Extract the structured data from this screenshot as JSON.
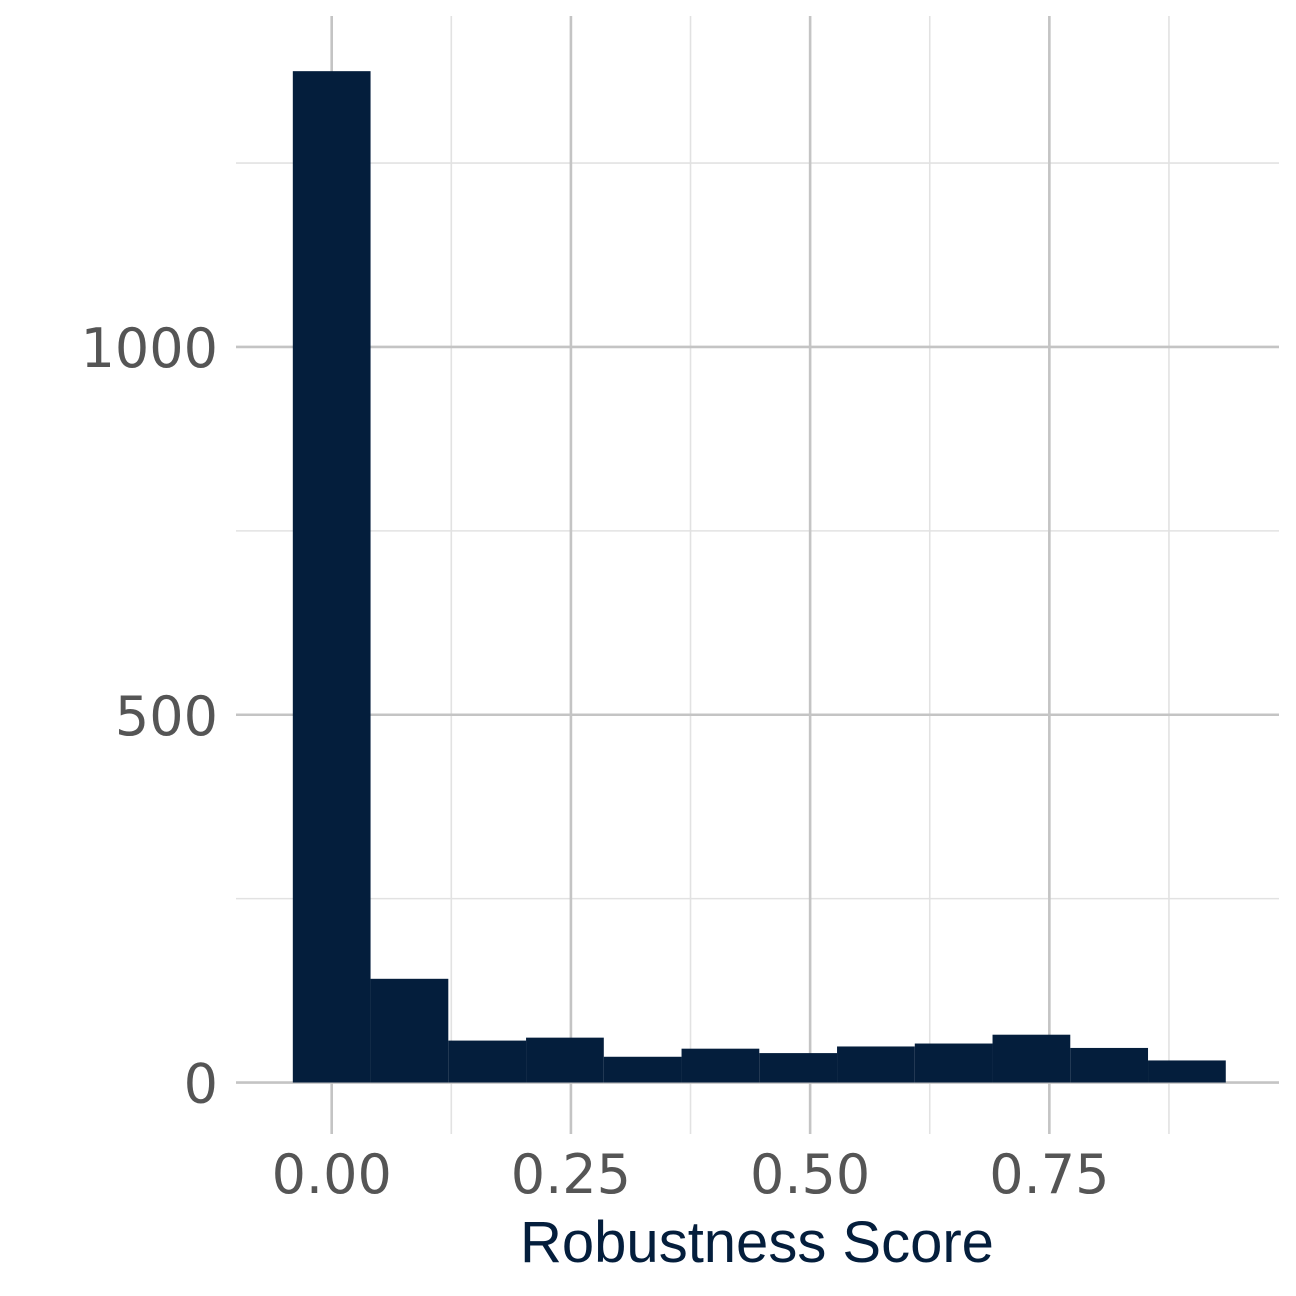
{
  "chart_data": {
    "type": "bar",
    "subtype": "histogram",
    "title": "",
    "xlabel": "Robustness Score",
    "ylabel": "",
    "bin_width": 0.08125,
    "bins": [
      {
        "x0": -0.040625,
        "x1": 0.040625,
        "count": 1375
      },
      {
        "x0": 0.040625,
        "x1": 0.121875,
        "count": 141
      },
      {
        "x0": 0.121875,
        "x1": 0.203125,
        "count": 57
      },
      {
        "x0": 0.203125,
        "x1": 0.284375,
        "count": 61
      },
      {
        "x0": 0.284375,
        "x1": 0.365625,
        "count": 35
      },
      {
        "x0": 0.365625,
        "x1": 0.446875,
        "count": 46
      },
      {
        "x0": 0.446875,
        "x1": 0.528125,
        "count": 40
      },
      {
        "x0": 0.528125,
        "x1": 0.609375,
        "count": 49
      },
      {
        "x0": 0.609375,
        "x1": 0.690625,
        "count": 53
      },
      {
        "x0": 0.690625,
        "x1": 0.771875,
        "count": 65
      },
      {
        "x0": 0.771875,
        "x1": 0.853125,
        "count": 47
      },
      {
        "x0": 0.853125,
        "x1": 0.934375,
        "count": 30
      }
    ],
    "xlim": [
      -0.1,
      0.99
    ],
    "ylim": [
      -70,
      1450
    ],
    "x_ticks": [
      0,
      0.25,
      0.5,
      0.75
    ],
    "x_tick_labels": [
      "0.00",
      "0.25",
      "0.50",
      "0.75"
    ],
    "y_ticks": [
      0,
      500,
      1000
    ],
    "y_tick_labels": [
      "0",
      "500",
      "1000"
    ],
    "x_minor_ticks": [
      0.125,
      0.375,
      0.625,
      0.875
    ],
    "y_minor_ticks": [
      250,
      750,
      1250
    ],
    "grid": true,
    "bar_color": "#041e3c",
    "label_color": "#041e3c",
    "tick_color": "#555555"
  }
}
